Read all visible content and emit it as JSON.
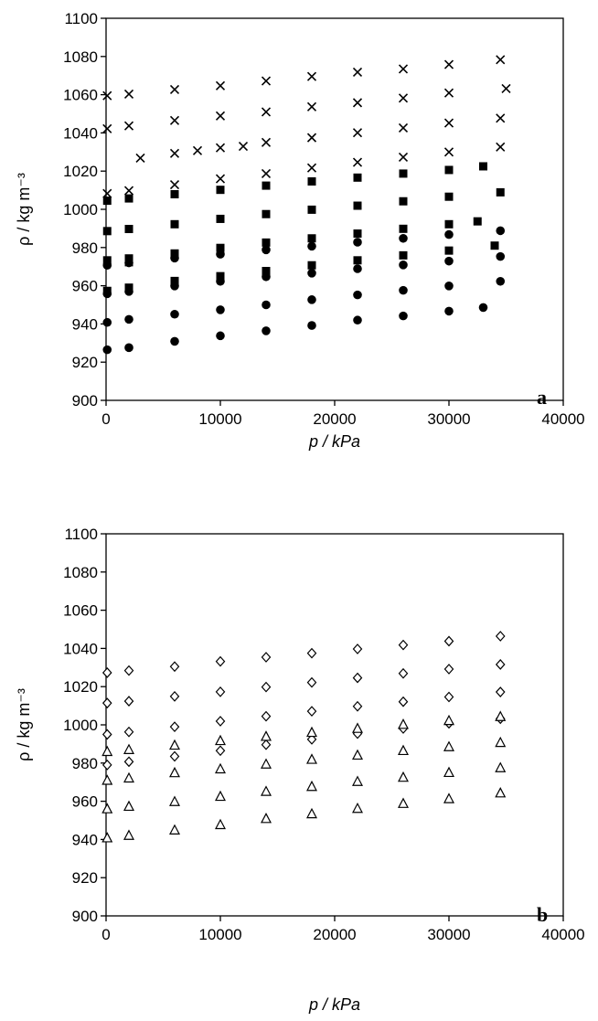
{
  "chart_data": [
    {
      "type": "scatter",
      "panel_label": "a",
      "xlabel": "p / kPa",
      "ylabel": "ρ / kg m⁻³",
      "xlim": [
        0,
        40000
      ],
      "ylim": [
        900,
        1100
      ],
      "x_ticks": [
        "0",
        "10000",
        "20000",
        "30000",
        "40000"
      ],
      "y_ticks": [
        "900",
        "920",
        "940",
        "960",
        "980",
        "1000",
        "1020",
        "1040",
        "1060",
        "1080",
        "1100"
      ],
      "series": [
        {
          "marker": "cross",
          "points": [
            [
              100,
              1059.5
            ],
            [
              2000,
              1060.3
            ],
            [
              6000,
              1062.7
            ],
            [
              10000,
              1064.7
            ],
            [
              14000,
              1067.2
            ],
            [
              18000,
              1069.5
            ],
            [
              22000,
              1071.8
            ],
            [
              26000,
              1073.5
            ],
            [
              30000,
              1075.8
            ],
            [
              34500,
              1078.3
            ],
            [
              100,
              1042.2
            ],
            [
              2000,
              1043.7
            ],
            [
              6000,
              1046.5
            ],
            [
              10000,
              1048.9
            ],
            [
              14000,
              1051.0
            ],
            [
              18000,
              1053.7
            ],
            [
              22000,
              1055.8
            ],
            [
              26000,
              1058.2
            ],
            [
              30000,
              1060.9
            ],
            [
              35000,
              1063.2
            ],
            [
              3000,
              1026.8
            ],
            [
              8000,
              1030.7
            ],
            [
              6000,
              1029.3
            ],
            [
              10000,
              1032.2
            ],
            [
              12000,
              1033.0
            ],
            [
              14000,
              1035.0
            ],
            [
              18000,
              1037.5
            ],
            [
              22000,
              1040.1
            ],
            [
              26000,
              1042.6
            ],
            [
              30000,
              1045.2
            ],
            [
              34500,
              1047.7
            ],
            [
              100,
              1008.3
            ],
            [
              2000,
              1009.8
            ],
            [
              6000,
              1012.9
            ],
            [
              10000,
              1016.0
            ],
            [
              14000,
              1018.7
            ],
            [
              18000,
              1021.7
            ],
            [
              22000,
              1024.6
            ],
            [
              26000,
              1027.3
            ],
            [
              30000,
              1030.0
            ],
            [
              34500,
              1032.6
            ]
          ]
        },
        {
          "marker": "square",
          "points": [
            [
              100,
              1004.5
            ],
            [
              2000,
              1005.7
            ],
            [
              6000,
              1007.9
            ],
            [
              10000,
              1010.2
            ],
            [
              14000,
              1012.4
            ],
            [
              18000,
              1014.6
            ],
            [
              22000,
              1016.6
            ],
            [
              26000,
              1018.7
            ],
            [
              30000,
              1020.6
            ],
            [
              33000,
              1022.5
            ],
            [
              100,
              988.6
            ],
            [
              2000,
              989.7
            ],
            [
              6000,
              992.2
            ],
            [
              10000,
              995.0
            ],
            [
              14000,
              997.5
            ],
            [
              18000,
              999.8
            ],
            [
              22000,
              1001.9
            ],
            [
              26000,
              1004.2
            ],
            [
              30000,
              1006.6
            ],
            [
              34500,
              1008.9
            ],
            [
              100,
              973.3
            ],
            [
              2000,
              974.3
            ],
            [
              6000,
              976.9
            ],
            [
              10000,
              979.8
            ],
            [
              14000,
              982.6
            ],
            [
              18000,
              984.8
            ],
            [
              22000,
              987.3
            ],
            [
              26000,
              989.8
            ],
            [
              30000,
              992.2
            ],
            [
              32500,
              993.7
            ],
            [
              2000,
              972.3
            ],
            [
              6000,
              962.5
            ],
            [
              10000,
              965.0
            ],
            [
              14000,
              967.7
            ],
            [
              18000,
              970.7
            ],
            [
              22000,
              973.3
            ],
            [
              26000,
              975.9
            ],
            [
              30000,
              978.4
            ],
            [
              34000,
              981.0
            ],
            [
              100,
              957.3
            ],
            [
              2000,
              959.0
            ]
          ]
        },
        {
          "marker": "circle",
          "points": [
            [
              100,
              970.7
            ],
            [
              2000,
              972.0
            ],
            [
              6000,
              974.5
            ],
            [
              10000,
              976.5
            ],
            [
              14000,
              978.8
            ],
            [
              18000,
              980.7
            ],
            [
              22000,
              982.8
            ],
            [
              26000,
              984.8
            ],
            [
              30000,
              986.8
            ],
            [
              34500,
              988.8
            ],
            [
              100,
              955.8
            ],
            [
              2000,
              957.0
            ],
            [
              6000,
              959.9
            ],
            [
              10000,
              962.3
            ],
            [
              14000,
              964.7
            ],
            [
              18000,
              966.6
            ],
            [
              22000,
              968.9
            ],
            [
              26000,
              970.9
            ],
            [
              30000,
              972.9
            ],
            [
              34500,
              975.3
            ],
            [
              100,
              940.8
            ],
            [
              2000,
              942.4
            ],
            [
              6000,
              945.1
            ],
            [
              10000,
              947.4
            ],
            [
              14000,
              950.0
            ],
            [
              18000,
              952.7
            ],
            [
              22000,
              955.2
            ],
            [
              26000,
              957.6
            ],
            [
              30000,
              959.9
            ],
            [
              34500,
              962.3
            ],
            [
              100,
              926.5
            ],
            [
              2000,
              927.6
            ],
            [
              6000,
              930.9
            ],
            [
              10000,
              933.8
            ],
            [
              14000,
              936.4
            ],
            [
              18000,
              939.2
            ],
            [
              22000,
              942.0
            ],
            [
              26000,
              944.2
            ],
            [
              30000,
              946.7
            ],
            [
              33000,
              948.6
            ]
          ]
        }
      ]
    },
    {
      "type": "scatter",
      "panel_label": "b",
      "xlabel": "p / kPa",
      "ylabel": "ρ / kg m⁻³",
      "xlim": [
        0,
        40000
      ],
      "ylim": [
        900,
        1100
      ],
      "x_ticks": [
        "0",
        "10000",
        "20000",
        "30000",
        "40000"
      ],
      "y_ticks": [
        "900",
        "920",
        "940",
        "960",
        "980",
        "1000",
        "1020",
        "1040",
        "1060",
        "1080",
        "1100"
      ],
      "series": [
        {
          "marker": "diamond",
          "points": [
            [
              100,
              1027.3
            ],
            [
              2000,
              1028.4
            ],
            [
              6000,
              1030.5
            ],
            [
              10000,
              1033.2
            ],
            [
              14000,
              1035.4
            ],
            [
              18000,
              1037.5
            ],
            [
              22000,
              1039.7
            ],
            [
              26000,
              1041.8
            ],
            [
              30000,
              1043.8
            ],
            [
              34500,
              1046.4
            ],
            [
              100,
              1011.4
            ],
            [
              2000,
              1012.4
            ],
            [
              6000,
              1014.9
            ],
            [
              10000,
              1017.3
            ],
            [
              14000,
              1019.8
            ],
            [
              18000,
              1022.2
            ],
            [
              22000,
              1024.6
            ],
            [
              26000,
              1026.9
            ],
            [
              30000,
              1029.2
            ],
            [
              34500,
              1031.6
            ],
            [
              100,
              995.0
            ],
            [
              2000,
              996.3
            ],
            [
              6000,
              999.0
            ],
            [
              10000,
              1001.9
            ],
            [
              14000,
              1004.5
            ],
            [
              18000,
              1007.1
            ],
            [
              22000,
              1009.7
            ],
            [
              26000,
              1012.1
            ],
            [
              30000,
              1014.6
            ],
            [
              34500,
              1017.2
            ],
            [
              100,
              979.0
            ],
            [
              2000,
              980.7
            ],
            [
              6000,
              983.5
            ],
            [
              10000,
              986.5
            ],
            [
              14000,
              989.6
            ],
            [
              18000,
              992.4
            ],
            [
              22000,
              995.4
            ],
            [
              26000,
              998.1
            ],
            [
              30000,
              1000.8
            ],
            [
              34500,
              1003.2
            ]
          ]
        },
        {
          "marker": "triangle",
          "points": [
            [
              100,
              985.9
            ],
            [
              2000,
              986.9
            ],
            [
              6000,
              989.2
            ],
            [
              10000,
              991.6
            ],
            [
              14000,
              993.8
            ],
            [
              18000,
              995.9
            ],
            [
              22000,
              998.0
            ],
            [
              26000,
              1000.1
            ],
            [
              30000,
              1002.1
            ],
            [
              34500,
              1004.2
            ],
            [
              100,
              970.8
            ],
            [
              2000,
              972.0
            ],
            [
              6000,
              974.8
            ],
            [
              10000,
              976.8
            ],
            [
              14000,
              979.3
            ],
            [
              18000,
              981.8
            ],
            [
              22000,
              984.0
            ],
            [
              26000,
              986.4
            ],
            [
              30000,
              988.4
            ],
            [
              34500,
              990.6
            ],
            [
              100,
              955.9
            ],
            [
              2000,
              957.2
            ],
            [
              6000,
              959.7
            ],
            [
              10000,
              962.4
            ],
            [
              14000,
              965.0
            ],
            [
              18000,
              967.6
            ],
            [
              22000,
              970.2
            ],
            [
              26000,
              972.4
            ],
            [
              30000,
              974.9
            ],
            [
              34500,
              977.4
            ],
            [
              100,
              940.7
            ],
            [
              2000,
              942.0
            ],
            [
              6000,
              944.8
            ],
            [
              10000,
              947.6
            ],
            [
              14000,
              950.8
            ],
            [
              18000,
              953.3
            ],
            [
              22000,
              956.1
            ],
            [
              26000,
              958.7
            ],
            [
              30000,
              961.2
            ],
            [
              34500,
              964.2
            ]
          ]
        }
      ]
    }
  ]
}
